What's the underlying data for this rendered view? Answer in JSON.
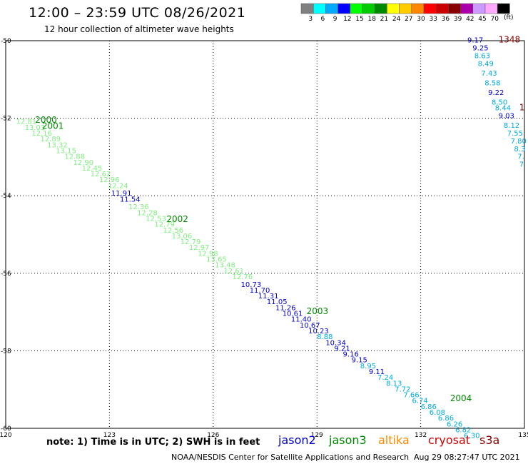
{
  "header": {
    "title": "12:00 – 23:59 UTC 08/26/2021",
    "subtitle": "12 hour collection of altimeter wave heights"
  },
  "legend": {
    "bins": [
      {
        "label": "3",
        "color": "#808080"
      },
      {
        "label": "6",
        "color": "#00ffff"
      },
      {
        "label": "9",
        "color": "#00aaff"
      },
      {
        "label": "12",
        "color": "#0000ff"
      },
      {
        "label": "15",
        "color": "#00ff00"
      },
      {
        "label": "18",
        "color": "#00cc00"
      },
      {
        "label": "21",
        "color": "#008800"
      },
      {
        "label": "24",
        "color": "#ffff00"
      },
      {
        "label": "27",
        "color": "#ffcc00"
      },
      {
        "label": "30",
        "color": "#ff8800"
      },
      {
        "label": "33",
        "color": "#ff0000"
      },
      {
        "label": "36",
        "color": "#cc0000"
      },
      {
        "label": "39",
        "color": "#880000"
      },
      {
        "label": "42",
        "color": "#aa00aa"
      },
      {
        "label": "45",
        "color": "#cc99ff"
      },
      {
        "label": "70",
        "color": "#ffaaff"
      },
      {
        "label": "",
        "color": "#000000"
      }
    ],
    "units": "(ft)"
  },
  "map": {
    "lon_labels": [
      "120",
      "123",
      "126",
      "129",
      "132",
      "135"
    ],
    "lat_labels": [
      "-50",
      "-52",
      "-54",
      "-56",
      "-58",
      "-60"
    ],
    "lon_range": [
      120,
      135
    ],
    "lat_range": [
      -50,
      -60
    ]
  },
  "tracks": {
    "time_labels": [
      {
        "text": "2000",
        "lon": 120.85,
        "lat": -52.12,
        "color": "#008800"
      },
      {
        "text": "2001",
        "lon": 121.05,
        "lat": -52.27,
        "color": "#008800"
      },
      {
        "text": "2002",
        "lon": 124.65,
        "lat": -54.68,
        "color": "#008800"
      },
      {
        "text": "2003",
        "lon": 128.7,
        "lat": -57.05,
        "color": "#008800"
      },
      {
        "text": "2004",
        "lon": 132.85,
        "lat": -59.3,
        "color": "#008800"
      },
      {
        "text": "1348",
        "lon": 134.25,
        "lat": -50.05,
        "color": "#880000"
      },
      {
        "text": "1",
        "lon": 134.85,
        "lat": -51.8,
        "color": "#880000"
      }
    ],
    "points": [
      {
        "v": "12.81",
        "lon": 120.3,
        "lat": -52.15,
        "c": "#80ee80"
      },
      {
        "v": "13.03",
        "lon": 120.55,
        "lat": -52.3,
        "c": "#80ee80"
      },
      {
        "v": "12.16",
        "lon": 120.75,
        "lat": -52.45,
        "c": "#80ee80"
      },
      {
        "v": "12.89",
        "lon": 121.0,
        "lat": -52.6,
        "c": "#80ee80"
      },
      {
        "v": "13.32",
        "lon": 121.2,
        "lat": -52.75,
        "c": "#80ee80"
      },
      {
        "v": "13.15",
        "lon": 121.45,
        "lat": -52.9,
        "c": "#80ee80"
      },
      {
        "v": "12.88",
        "lon": 121.7,
        "lat": -53.05,
        "c": "#80ee80"
      },
      {
        "v": "12.90",
        "lon": 121.95,
        "lat": -53.2,
        "c": "#80ee80"
      },
      {
        "v": "12.45",
        "lon": 122.2,
        "lat": -53.35,
        "c": "#80ee80"
      },
      {
        "v": "12.62",
        "lon": 122.45,
        "lat": -53.5,
        "c": "#80ee80"
      },
      {
        "v": "12.96",
        "lon": 122.7,
        "lat": -53.65,
        "c": "#80ee80"
      },
      {
        "v": "12.24",
        "lon": 122.95,
        "lat": -53.8,
        "c": "#80ee80"
      },
      {
        "v": "11.91",
        "lon": 123.05,
        "lat": -54.0,
        "c": "#0000cc"
      },
      {
        "v": "11.54",
        "lon": 123.3,
        "lat": -54.15,
        "c": "#0000cc"
      },
      {
        "v": "12.36",
        "lon": 123.55,
        "lat": -54.35,
        "c": "#80ee80"
      },
      {
        "v": "12.28",
        "lon": 123.8,
        "lat": -54.5,
        "c": "#80ee80"
      },
      {
        "v": "12.53",
        "lon": 124.05,
        "lat": -54.65,
        "c": "#80ee80"
      },
      {
        "v": "12.79",
        "lon": 124.3,
        "lat": -54.8,
        "c": "#80ee80"
      },
      {
        "v": "12.56",
        "lon": 124.55,
        "lat": -54.95,
        "c": "#80ee80"
      },
      {
        "v": "13.06",
        "lon": 124.8,
        "lat": -55.1,
        "c": "#80ee80"
      },
      {
        "v": "12.79",
        "lon": 125.05,
        "lat": -55.25,
        "c": "#80ee80"
      },
      {
        "v": "12.97",
        "lon": 125.3,
        "lat": -55.4,
        "c": "#80ee80"
      },
      {
        "v": "12.98",
        "lon": 125.55,
        "lat": -55.55,
        "c": "#80ee80"
      },
      {
        "v": "13.65",
        "lon": 125.8,
        "lat": -55.7,
        "c": "#80ee80"
      },
      {
        "v": "13.48",
        "lon": 126.05,
        "lat": -55.85,
        "c": "#80ee80"
      },
      {
        "v": "12.61",
        "lon": 126.3,
        "lat": -56.0,
        "c": "#80ee80"
      },
      {
        "v": "12.76",
        "lon": 126.55,
        "lat": -56.15,
        "c": "#80ee80"
      },
      {
        "v": "10.73",
        "lon": 126.8,
        "lat": -56.35,
        "c": "#0000cc"
      },
      {
        "v": "11.70",
        "lon": 127.05,
        "lat": -56.5,
        "c": "#0000cc"
      },
      {
        "v": "11.31",
        "lon": 127.3,
        "lat": -56.65,
        "c": "#0000cc"
      },
      {
        "v": "11.05",
        "lon": 127.55,
        "lat": -56.8,
        "c": "#0000cc"
      },
      {
        "v": "11.26",
        "lon": 127.8,
        "lat": -56.95,
        "c": "#0000cc"
      },
      {
        "v": "10.61",
        "lon": 128.0,
        "lat": -57.1,
        "c": "#0000cc"
      },
      {
        "v": "11.40",
        "lon": 128.25,
        "lat": -57.25,
        "c": "#0000cc"
      },
      {
        "v": "10.67",
        "lon": 128.5,
        "lat": -57.4,
        "c": "#0000cc"
      },
      {
        "v": "10.23",
        "lon": 128.75,
        "lat": -57.55,
        "c": "#0000cc"
      },
      {
        "v": "8.88",
        "lon": 129.0,
        "lat": -57.7,
        "c": "#00aadd"
      },
      {
        "v": "10.34",
        "lon": 129.25,
        "lat": -57.85,
        "c": "#0000cc"
      },
      {
        "v": "9.21",
        "lon": 129.5,
        "lat": -58.0,
        "c": "#0000cc"
      },
      {
        "v": "9.16",
        "lon": 129.75,
        "lat": -58.15,
        "c": "#0000cc"
      },
      {
        "v": "9.15",
        "lon": 130.0,
        "lat": -58.3,
        "c": "#0000cc"
      },
      {
        "v": "8.95",
        "lon": 130.25,
        "lat": -58.45,
        "c": "#00aadd"
      },
      {
        "v": "9.11",
        "lon": 130.5,
        "lat": -58.6,
        "c": "#0000cc"
      },
      {
        "v": "7.24",
        "lon": 130.75,
        "lat": -58.75,
        "c": "#00aadd"
      },
      {
        "v": "8.13",
        "lon": 131.0,
        "lat": -58.9,
        "c": "#00aadd"
      },
      {
        "v": "7.72",
        "lon": 131.25,
        "lat": -59.05,
        "c": "#00aadd"
      },
      {
        "v": "7.66",
        "lon": 131.5,
        "lat": -59.2,
        "c": "#00aadd"
      },
      {
        "v": "6.74",
        "lon": 131.75,
        "lat": -59.35,
        "c": "#00aadd"
      },
      {
        "v": "6.86",
        "lon": 132.0,
        "lat": -59.5,
        "c": "#00aadd"
      },
      {
        "v": "6.08",
        "lon": 132.25,
        "lat": -59.65,
        "c": "#00aadd"
      },
      {
        "v": "6.86",
        "lon": 132.5,
        "lat": -59.8,
        "c": "#00aadd"
      },
      {
        "v": "6.26",
        "lon": 132.75,
        "lat": -59.95,
        "c": "#00aadd"
      },
      {
        "v": "6.82",
        "lon": 133.0,
        "lat": -60.1,
        "c": "#00aadd"
      },
      {
        "v": "6.30",
        "lon": 133.25,
        "lat": -60.25,
        "c": "#00aadd"
      },
      {
        "v": "9.17",
        "lon": 133.35,
        "lat": -50.05,
        "c": "#0000cc"
      },
      {
        "v": "9.25",
        "lon": 133.5,
        "lat": -50.25,
        "c": "#0000cc"
      },
      {
        "v": "8.63",
        "lon": 133.55,
        "lat": -50.45,
        "c": "#00aadd"
      },
      {
        "v": "8.49",
        "lon": 133.65,
        "lat": -50.65,
        "c": "#00aadd"
      },
      {
        "v": "7.43",
        "lon": 133.75,
        "lat": -50.9,
        "c": "#00aadd"
      },
      {
        "v": "8.58",
        "lon": 133.85,
        "lat": -51.15,
        "c": "#00aadd"
      },
      {
        "v": "9.22",
        "lon": 133.95,
        "lat": -51.4,
        "c": "#0000cc"
      },
      {
        "v": "8.50",
        "lon": 134.05,
        "lat": -51.65,
        "c": "#00aadd"
      },
      {
        "v": "8.44",
        "lon": 134.15,
        "lat": -51.8,
        "c": "#00aadd"
      },
      {
        "v": "9.03",
        "lon": 134.25,
        "lat": -52.0,
        "c": "#0000cc"
      },
      {
        "v": "8.12",
        "lon": 134.4,
        "lat": -52.25,
        "c": "#00aadd"
      },
      {
        "v": "7.55",
        "lon": 134.5,
        "lat": -52.45,
        "c": "#00aadd"
      },
      {
        "v": "7.80",
        "lon": 134.6,
        "lat": -52.65,
        "c": "#00aadd"
      },
      {
        "v": "8.3",
        "lon": 134.7,
        "lat": -52.85,
        "c": "#00aadd"
      },
      {
        "v": "7.",
        "lon": 134.8,
        "lat": -53.05,
        "c": "#00aadd"
      },
      {
        "v": "7",
        "lon": 134.85,
        "lat": -53.25,
        "c": "#00aadd"
      }
    ]
  },
  "footer": {
    "note": "note:  1) Time is in UTC;  2) SWH is in feet",
    "satellites": [
      {
        "name": "jason2",
        "color": "#0000cc"
      },
      {
        "name": "jason3",
        "color": "#008800"
      },
      {
        "name": "altika",
        "color": "#ff8800"
      },
      {
        "name": "cryosat",
        "color": "#cc0000"
      },
      {
        "name": "s3a",
        "color": "#880000"
      }
    ],
    "credit": "NOAA/NESDIS Center for Satellite Applications and Research",
    "timestamp": "Aug 29 08:27:47 UTC 2021"
  }
}
